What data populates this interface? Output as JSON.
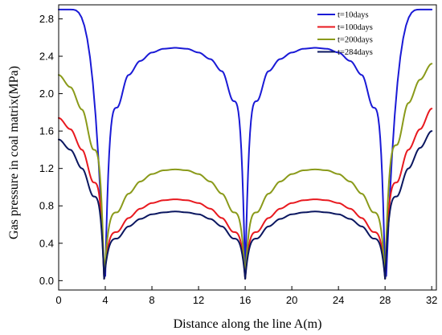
{
  "chart_data": {
    "type": "line",
    "title": "",
    "xlabel": "Distance along the  line A(m)",
    "ylabel": "Gas pressure in coal matrix(MPa)",
    "xlim": [
      0,
      32.4
    ],
    "ylim": [
      -0.1,
      2.95
    ],
    "xticks": [
      0,
      4,
      8,
      12,
      16,
      20,
      24,
      28,
      32
    ],
    "yticks": [
      0.0,
      0.4,
      0.8,
      1.2,
      1.6,
      2.0,
      2.4,
      2.8
    ],
    "ytick_labels": [
      "0.0",
      "0.4",
      "0.8",
      "1.2",
      "1.6",
      "2.0",
      "2.4",
      "2.8"
    ],
    "grid": false,
    "legend_position": "top-right",
    "boreholes_x": [
      3.9,
      16.0,
      28.0
    ],
    "series": [
      {
        "name": "t=10days",
        "color": "#1a1ad6",
        "x": [
          0,
          1,
          3.9,
          4,
          5,
          6,
          7,
          8,
          9,
          10,
          11,
          12,
          13,
          14,
          15,
          16,
          17,
          18,
          19,
          20,
          21,
          22,
          23,
          24,
          25,
          26,
          27,
          28,
          28.1,
          31,
          32
        ],
        "y": [
          2.9,
          2.9,
          0.02,
          0.05,
          1.85,
          2.2,
          2.35,
          2.44,
          2.48,
          2.49,
          2.48,
          2.44,
          2.37,
          2.24,
          1.92,
          0.02,
          1.92,
          2.24,
          2.37,
          2.44,
          2.48,
          2.49,
          2.48,
          2.44,
          2.35,
          2.2,
          1.85,
          0.02,
          0.05,
          2.9,
          2.9
        ]
      },
      {
        "name": "t=100days",
        "color": "#e8191f",
        "x": [
          0,
          1,
          2,
          3,
          3.9,
          5,
          6,
          7,
          8,
          9,
          10,
          11,
          12,
          13,
          14,
          15,
          16,
          17,
          18,
          19,
          20,
          21,
          22,
          23,
          24,
          25,
          26,
          27,
          28,
          29,
          30,
          31,
          32
        ],
        "y": [
          1.74,
          1.62,
          1.4,
          1.05,
          0.02,
          0.52,
          0.67,
          0.77,
          0.83,
          0.86,
          0.87,
          0.86,
          0.83,
          0.77,
          0.67,
          0.52,
          0.02,
          0.52,
          0.67,
          0.77,
          0.83,
          0.86,
          0.87,
          0.86,
          0.83,
          0.77,
          0.67,
          0.52,
          0.02,
          1.05,
          1.4,
          1.62,
          1.84
        ]
      },
      {
        "name": "t=200days",
        "color": "#8a9a1a",
        "x": [
          0,
          1,
          2,
          3,
          3.9,
          5,
          6,
          7,
          8,
          9,
          10,
          11,
          12,
          13,
          14,
          15,
          16,
          17,
          18,
          19,
          20,
          21,
          22,
          23,
          24,
          25,
          26,
          27,
          28,
          29,
          30,
          31,
          32
        ],
        "y": [
          2.2,
          2.07,
          1.83,
          1.4,
          0.02,
          0.73,
          0.93,
          1.06,
          1.14,
          1.18,
          1.19,
          1.18,
          1.14,
          1.06,
          0.93,
          0.73,
          0.02,
          0.73,
          0.93,
          1.06,
          1.14,
          1.18,
          1.19,
          1.18,
          1.14,
          1.06,
          0.93,
          0.73,
          0.02,
          1.45,
          1.9,
          2.15,
          2.32
        ]
      },
      {
        "name": "t=284days",
        "color": "#0b1760",
        "x": [
          0,
          1,
          2,
          3,
          3.9,
          5,
          6,
          7,
          8,
          9,
          10,
          11,
          12,
          13,
          14,
          15,
          16,
          17,
          18,
          19,
          20,
          21,
          22,
          23,
          24,
          25,
          26,
          27,
          28,
          29,
          30,
          31,
          32
        ],
        "y": [
          1.51,
          1.4,
          1.2,
          0.9,
          0.02,
          0.45,
          0.58,
          0.66,
          0.71,
          0.73,
          0.74,
          0.73,
          0.71,
          0.66,
          0.58,
          0.45,
          0.02,
          0.45,
          0.58,
          0.66,
          0.71,
          0.73,
          0.74,
          0.73,
          0.71,
          0.66,
          0.58,
          0.45,
          0.02,
          0.9,
          1.2,
          1.42,
          1.6
        ]
      }
    ]
  }
}
